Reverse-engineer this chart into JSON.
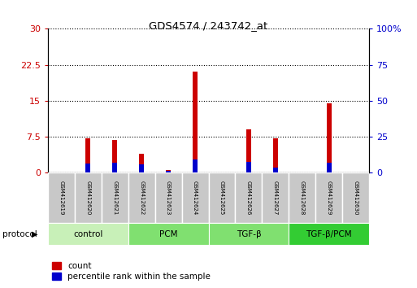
{
  "title": "GDS4574 / 243742_at",
  "samples": [
    "GSM412619",
    "GSM412620",
    "GSM412621",
    "GSM412622",
    "GSM412623",
    "GSM412624",
    "GSM412625",
    "GSM412626",
    "GSM412627",
    "GSM412628",
    "GSM412629",
    "GSM412630"
  ],
  "count_values": [
    0,
    7.2,
    6.8,
    4.0,
    0.5,
    21.0,
    0,
    9.0,
    7.2,
    0,
    14.5,
    0
  ],
  "percentile_values": [
    0,
    6.5,
    6.8,
    5.8,
    1.5,
    9.0,
    0,
    7.5,
    3.5,
    0.5,
    6.8,
    0
  ],
  "left_ylim": [
    0,
    30
  ],
  "right_ylim": [
    0,
    100
  ],
  "left_yticks": [
    0,
    7.5,
    15,
    22.5,
    30
  ],
  "left_yticklabels": [
    "0",
    "7.5",
    "15",
    "22.5",
    "30"
  ],
  "right_yticks": [
    0,
    25,
    50,
    75,
    100
  ],
  "right_yticklabels": [
    "0",
    "25",
    "50",
    "75",
    "100%"
  ],
  "bar_width": 0.18,
  "count_color": "#cc0000",
  "percentile_color": "#0000cc",
  "background_color": "#ffffff",
  "plot_bg_color": "#ffffff",
  "left_tick_color": "#cc0000",
  "right_tick_color": "#0000cc",
  "legend_items": [
    "count",
    "percentile rank within the sample"
  ],
  "protocol_label": "protocol",
  "group_boundaries": [
    {
      "start": 0,
      "end": 2,
      "label": "control",
      "color": "#c8f0b8"
    },
    {
      "start": 3,
      "end": 5,
      "label": "PCM",
      "color": "#80e070"
    },
    {
      "start": 6,
      "end": 8,
      "label": "TGF-β",
      "color": "#80e070"
    },
    {
      "start": 9,
      "end": 11,
      "label": "TGF-β/PCM",
      "color": "#33cc33"
    }
  ],
  "sample_box_color": "#c8c8c8",
  "sample_box_edge_color": "#ffffff"
}
